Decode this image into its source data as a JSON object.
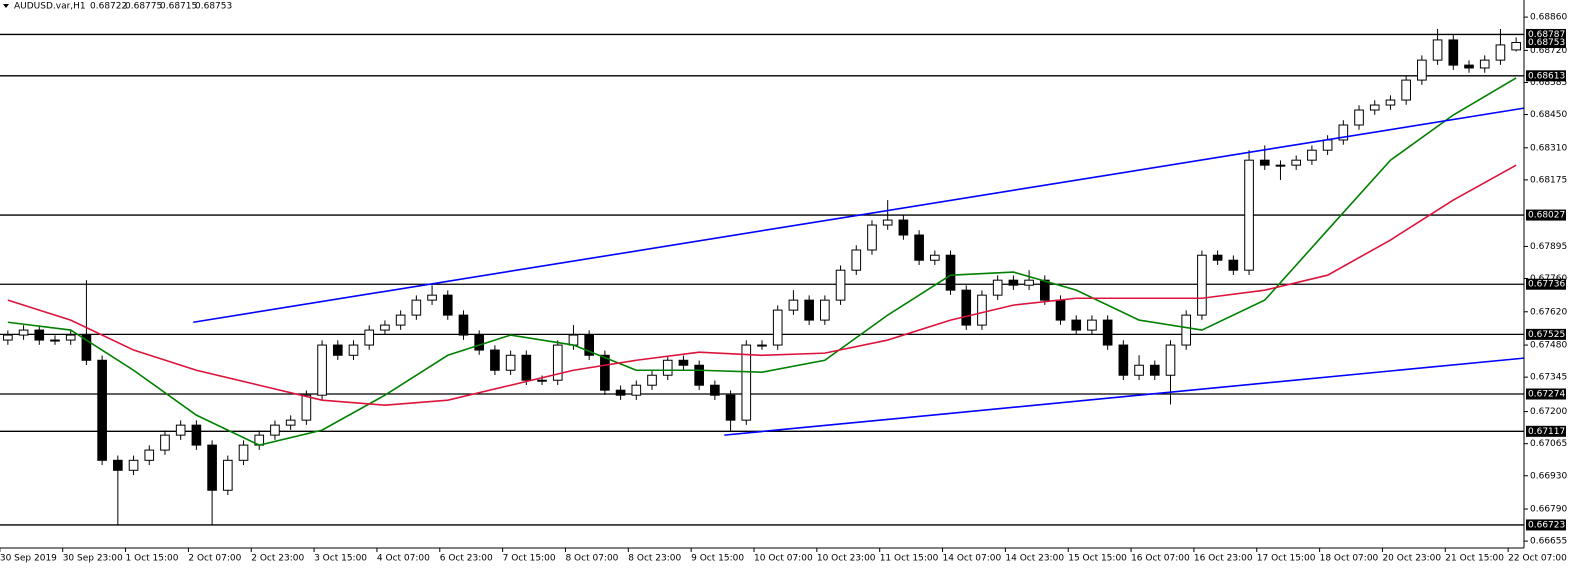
{
  "chart_data": {
    "type": "candlestick",
    "title": "AUDUSD.var,H1",
    "xlim": [
      -0.5,
      96.5
    ],
    "ylim": [
      0.66626,
      0.68932
    ],
    "yticks": [
      {
        "value": 0.6886,
        "label": "0.68860"
      },
      {
        "value": 0.6872,
        "label": "0.68720"
      },
      0.68585,
      {
        "value": 0.6845,
        "label": "0.68450"
      },
      {
        "value": 0.6831,
        "label": "0.68310"
      },
      0.68175,
      0.67895,
      {
        "value": 0.6776,
        "label": "0.67760"
      },
      {
        "value": 0.6762,
        "label": "0.67620"
      },
      {
        "value": 0.6748,
        "label": "0.67480"
      },
      0.67345,
      {
        "value": 0.672,
        "label": "0.67200"
      },
      0.67065,
      {
        "value": 0.6693,
        "label": "0.66930"
      },
      {
        "value": 0.6679,
        "label": "0.66790"
      },
      0.66655
    ],
    "xticks": [
      {
        "value": 0,
        "label": "30 Sep 2019"
      },
      {
        "value": 4,
        "label": "30 Sep 23:00"
      },
      {
        "value": 8,
        "label": "1 Oct 15:00"
      },
      {
        "value": 12,
        "label": "2 Oct 07:00"
      },
      {
        "value": 16,
        "label": "2 Oct 23:00"
      },
      {
        "value": 20,
        "label": "3 Oct 15:00"
      },
      {
        "value": 24,
        "label": "4 Oct 07:00"
      },
      {
        "value": 28,
        "label": "6 Oct 23:00"
      },
      {
        "value": 32,
        "label": "7 Oct 15:00"
      },
      {
        "value": 36,
        "label": "8 Oct 07:00"
      },
      {
        "value": 40,
        "label": "8 Oct 23:00"
      },
      {
        "value": 44,
        "label": "9 Oct 15:00"
      },
      {
        "value": 48,
        "label": "10 Oct 07:00"
      },
      {
        "value": 52,
        "label": "10 Oct 23:00"
      },
      {
        "value": 56,
        "label": "11 Oct 15:00"
      },
      {
        "value": 60,
        "label": "14 Oct 07:00"
      },
      {
        "value": 64,
        "label": "14 Oct 23:00"
      },
      {
        "value": 68,
        "label": "15 Oct 15:00"
      },
      {
        "value": 72,
        "label": "16 Oct 07:00"
      },
      {
        "value": 76,
        "label": "16 Oct 23:00"
      },
      {
        "value": 80,
        "label": "17 Oct 15:00"
      },
      {
        "value": 84,
        "label": "18 Oct 07:00"
      },
      {
        "value": 88,
        "label": "20 Oct 23:00"
      },
      {
        "value": 92,
        "label": "21 Oct 15:00"
      },
      {
        "value": 96,
        "label": "22 Oct 07:00"
      }
    ],
    "open": [
      0.67501,
      0.67522,
      0.67543,
      0.67501,
      0.67501,
      0.67522,
      0.67416,
      0.66995,
      0.66953,
      0.66995,
      0.67038,
      0.67101,
      0.67143,
      0.67059,
      0.66869,
      0.66995,
      0.67059,
      0.67101,
      0.67143,
      0.67164,
      0.67269,
      0.6748,
      0.67437,
      0.6748,
      0.67543,
      0.67564,
      0.67606,
      0.67669,
      0.6769,
      0.67606,
      0.67522,
      0.67459,
      0.67374,
      0.67437,
      0.67332,
      0.67332,
      0.6748,
      0.67522,
      0.67437,
      0.6729,
      0.67269,
      0.67311,
      0.67353,
      0.67416,
      0.67395,
      0.67311,
      0.67269,
      0.67164,
      0.6748,
      0.6748,
      0.67627,
      0.67669,
      0.67585,
      0.67669,
      0.67795,
      0.6788,
      0.67985,
      0.68006,
      0.67943,
      0.67837,
      0.67858,
      0.67711,
      0.67564,
      0.6769,
      0.67753,
      0.67732,
      0.67753,
      0.67669,
      0.67585,
      0.67543,
      0.67585,
      0.6748,
      0.67353,
      0.67395,
      0.67353,
      0.6748,
      0.67606,
      0.67858,
      0.67837,
      0.67795,
      0.68258,
      0.68237,
      0.68237,
      0.68258,
      0.683,
      0.68343,
      0.68406,
      0.68469,
      0.6849,
      0.68511,
      0.68595,
      0.68679,
      0.68764,
      0.68658,
      0.68646,
      0.68679,
      0.68722
    ],
    "high": [
      0.67542,
      0.67563,
      0.67563,
      0.67521,
      0.67542,
      0.67753,
      0.67436,
      0.67015,
      0.67015,
      0.67058,
      0.67121,
      0.67163,
      0.67163,
      0.67079,
      0.67015,
      0.67079,
      0.67121,
      0.67163,
      0.67184,
      0.67289,
      0.675,
      0.675,
      0.675,
      0.67563,
      0.67584,
      0.67626,
      0.67689,
      0.67732,
      0.6771,
      0.67626,
      0.67542,
      0.67479,
      0.67457,
      0.67457,
      0.67352,
      0.675,
      0.67564,
      0.67542,
      0.67457,
      0.6731,
      0.67331,
      0.67373,
      0.67436,
      0.67436,
      0.67415,
      0.67331,
      0.67289,
      0.675,
      0.675,
      0.67647,
      0.67711,
      0.67689,
      0.67689,
      0.67815,
      0.679,
      0.68005,
      0.6809,
      0.68026,
      0.67963,
      0.67878,
      0.67878,
      0.67731,
      0.6771,
      0.67773,
      0.67773,
      0.67795,
      0.67773,
      0.67689,
      0.67605,
      0.67605,
      0.67605,
      0.675,
      0.67437,
      0.67415,
      0.675,
      0.67626,
      0.67878,
      0.67878,
      0.67857,
      0.683,
      0.6832,
      0.68257,
      0.68278,
      0.6832,
      0.68363,
      0.68426,
      0.68489,
      0.6851,
      0.68531,
      0.68615,
      0.68699,
      0.6881,
      0.68784,
      0.68678,
      0.68699,
      0.6881,
      0.68775
    ],
    "low": [
      0.67481,
      0.67502,
      0.67481,
      0.67481,
      0.67481,
      0.67396,
      0.66975,
      0.66722,
      0.66933,
      0.66975,
      0.67018,
      0.67081,
      0.67039,
      0.66722,
      0.66849,
      0.66975,
      0.67039,
      0.67081,
      0.67123,
      0.67144,
      0.67249,
      0.67417,
      0.67417,
      0.6746,
      0.67523,
      0.67544,
      0.67586,
      0.67649,
      0.67586,
      0.67502,
      0.67439,
      0.67354,
      0.67354,
      0.67312,
      0.67312,
      0.67312,
      0.6746,
      0.67417,
      0.6727,
      0.67249,
      0.67249,
      0.67291,
      0.67333,
      0.67375,
      0.67291,
      0.67249,
      0.67117,
      0.67144,
      0.6746,
      0.6746,
      0.67607,
      0.67565,
      0.67565,
      0.67649,
      0.67775,
      0.6786,
      0.67965,
      0.67923,
      0.67817,
      0.67817,
      0.67691,
      0.67544,
      0.67544,
      0.6767,
      0.67712,
      0.67712,
      0.67649,
      0.67565,
      0.67523,
      0.67523,
      0.6746,
      0.67333,
      0.67333,
      0.67333,
      0.6723,
      0.6746,
      0.67586,
      0.67817,
      0.67775,
      0.67775,
      0.68217,
      0.68175,
      0.68217,
      0.68238,
      0.6828,
      0.68323,
      0.68386,
      0.68449,
      0.6847,
      0.68491,
      0.68575,
      0.68659,
      0.68638,
      0.68626,
      0.68626,
      0.68659,
      0.68715
    ],
    "close": [
      0.67522,
      0.67543,
      0.67501,
      0.67501,
      0.67522,
      0.67416,
      0.66995,
      0.66953,
      0.66995,
      0.67038,
      0.67101,
      0.67143,
      0.67059,
      0.66869,
      0.66995,
      0.67059,
      0.67101,
      0.67143,
      0.67164,
      0.67269,
      0.6748,
      0.67437,
      0.6748,
      0.67543,
      0.67564,
      0.67606,
      0.67669,
      0.6769,
      0.67606,
      0.67522,
      0.67459,
      0.67374,
      0.67437,
      0.67332,
      0.67332,
      0.6748,
      0.67522,
      0.67437,
      0.6729,
      0.67269,
      0.67311,
      0.67353,
      0.67416,
      0.67395,
      0.67311,
      0.67269,
      0.67164,
      0.6748,
      0.6748,
      0.67627,
      0.67669,
      0.67585,
      0.67669,
      0.67795,
      0.6788,
      0.67985,
      0.68006,
      0.67943,
      0.67837,
      0.67858,
      0.67711,
      0.67564,
      0.6769,
      0.67753,
      0.67732,
      0.67753,
      0.67669,
      0.67585,
      0.67543,
      0.67585,
      0.6748,
      0.67353,
      0.67395,
      0.67353,
      0.6748,
      0.67606,
      0.67858,
      0.67837,
      0.67795,
      0.68258,
      0.68237,
      0.68237,
      0.68258,
      0.683,
      0.68343,
      0.68406,
      0.68469,
      0.6849,
      0.68511,
      0.68595,
      0.68679,
      0.68764,
      0.68658,
      0.68646,
      0.68679,
      0.68743,
      0.68753
    ],
    "lines": [
      {
        "color": "#008000",
        "x": [
          0,
          4,
          8,
          12,
          16,
          20,
          24,
          28,
          32,
          36,
          40,
          44,
          48,
          52,
          56,
          60,
          64,
          68,
          72,
          76,
          80,
          84,
          88,
          92,
          96
        ],
        "values": [
          0.67576,
          0.67543,
          0.67374,
          0.67185,
          0.67059,
          0.67122,
          0.67269,
          0.67437,
          0.67522,
          0.6748,
          0.67374,
          0.67374,
          0.67366,
          0.67416,
          0.67606,
          0.67774,
          0.67787,
          0.67711,
          0.67585,
          0.67543,
          0.67669,
          0.67964,
          0.68258,
          0.68448,
          0.68604
        ]
      },
      {
        "color": "#dc143c",
        "x": [
          0,
          4,
          8,
          12,
          16,
          20,
          24,
          28,
          32,
          36,
          40,
          44,
          48,
          52,
          56,
          60,
          64,
          68,
          72,
          76,
          80,
          84,
          88,
          92,
          96
        ],
        "values": [
          0.67669,
          0.67585,
          0.67459,
          0.67374,
          0.67311,
          0.67248,
          0.67227,
          0.67248,
          0.67311,
          0.67374,
          0.67416,
          0.6745,
          0.67437,
          0.67446,
          0.67501,
          0.67585,
          0.67648,
          0.67677,
          0.67677,
          0.67677,
          0.67711,
          0.67774,
          0.67922,
          0.6809,
          0.68237
        ]
      }
    ],
    "trendlines": [
      {
        "color": "#0000ff",
        "x": [
          11.8,
          96.5
        ],
        "values": [
          0.67576,
          0.68477
        ]
      },
      {
        "color": "#0000ff",
        "x": [
          45.6,
          96.5
        ],
        "values": [
          0.67101,
          0.67425
        ]
      }
    ],
    "levels": [
      0.68787,
      0.68613,
      0.68027,
      0.67736,
      0.67525,
      0.67274,
      0.67117,
      0.66723
    ],
    "bull_color": "#ffffff",
    "bear_color": "#000000"
  }
}
